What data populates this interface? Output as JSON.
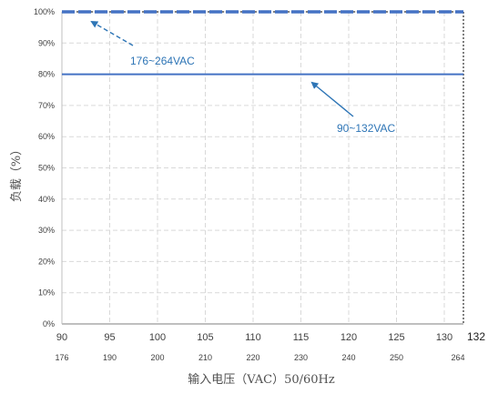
{
  "chart_data": {
    "type": "line",
    "title": "",
    "xlabel": "输入电压（VAC）50/60Hz",
    "ylabel": "负载（%）",
    "ylim": [
      0,
      100
    ],
    "xlim": [
      90,
      132
    ],
    "yticks": [
      "0%",
      "10%",
      "20%",
      "30%",
      "40%",
      "50%",
      "60%",
      "70%",
      "80%",
      "90%",
      "100%"
    ],
    "xticks": [
      "90",
      "95",
      "100",
      "105",
      "110",
      "115",
      "120",
      "125",
      "130"
    ],
    "x_end_label": "132",
    "secondary_xticks": [
      "176",
      "190",
      "200",
      "210",
      "220",
      "230",
      "240",
      "250",
      "264"
    ],
    "grid": true,
    "colors": {
      "series": "#4472c4",
      "annotation": "#2e75b6",
      "grid": "#d9d9d9"
    },
    "series": [
      {
        "name": "176~264VAC",
        "style": "dashed",
        "x": [
          90,
          132
        ],
        "y": [
          100,
          100
        ]
      },
      {
        "name": "90~132VAC",
        "style": "solid",
        "x": [
          90,
          132
        ],
        "y": [
          80,
          80
        ]
      }
    ],
    "annotations": [
      {
        "text": "176~264VAC",
        "series": "176~264VAC"
      },
      {
        "text": "90~132VAC",
        "series": "90~132VAC"
      }
    ]
  }
}
